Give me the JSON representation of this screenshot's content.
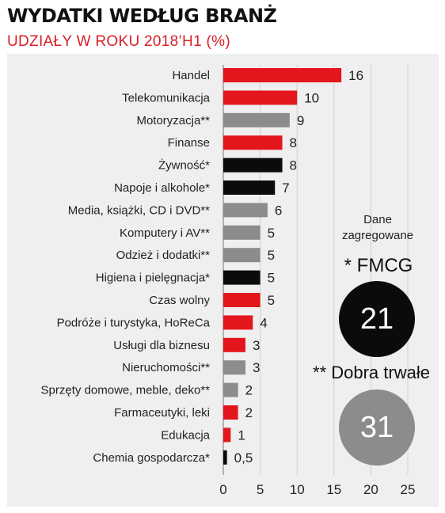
{
  "header": {
    "title": "WYDATKI WEDŁUG BRANŻ",
    "subtitle": "UDZIAŁY W ROKU 2018’H1 (%)"
  },
  "colors": {
    "red": "#e4161d",
    "gray": "#8c8c8c",
    "black": "#0b0b0b",
    "panel": "#efefef"
  },
  "chart_data": {
    "type": "bar",
    "orientation": "horizontal",
    "categories": [
      "Handel",
      "Telekomunikacja",
      "Motoryzacja**",
      "Finanse",
      "Żywność*",
      "Napoje i alkohole*",
      "Media, książki, CD i DVD**",
      "Komputery i AV**",
      "Odzież i dodatki**",
      "Higiena i pielęgnacja*",
      "Czas wolny",
      "Podróże i turystyka, HoReCa",
      "Usługi dla biznesu",
      "Nieruchomości**",
      "Sprzęty domowe, meble, deko**",
      "Farmaceutyki, leki",
      "Edukacja",
      "Chemia gospodarcza*"
    ],
    "values": [
      16,
      10,
      9,
      8,
      8,
      7,
      6,
      5,
      5,
      5,
      5,
      4,
      3,
      3,
      2,
      2,
      1,
      0.5
    ],
    "value_labels": [
      "16",
      "10",
      "9",
      "8",
      "8",
      "7",
      "6",
      "5",
      "5",
      "5",
      "5",
      "4",
      "3",
      "3",
      "2",
      "2",
      "1",
      "0,5"
    ],
    "bar_colors": [
      "red",
      "red",
      "gray",
      "red",
      "black",
      "black",
      "gray",
      "gray",
      "gray",
      "black",
      "red",
      "red",
      "red",
      "gray",
      "gray",
      "red",
      "red",
      "black"
    ],
    "xticks": [
      "0",
      "5",
      "10",
      "15",
      "20",
      "25"
    ],
    "xlim": [
      0,
      25
    ],
    "grid": true
  },
  "side": {
    "aggregated_label": [
      "Dane",
      "zagregowane"
    ],
    "fmcg_label": "* FMCG",
    "fmcg_value": "21",
    "durables_label": "** Dobra trwałe",
    "durables_value": "31"
  }
}
